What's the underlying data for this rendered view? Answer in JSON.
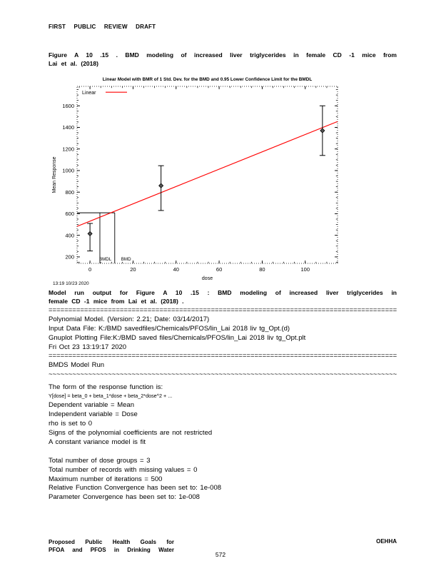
{
  "doc": {
    "header": "FIRST PUBLIC REVIEW DRAFT",
    "caption": {
      "line1": "Figure A 10 .15 . BMD modeling of increased liver triglycerides in female CD -1 mice from",
      "line2": "Lai et al. (2018)"
    },
    "model_para": {
      "line1": "Model run output for Figure A 10 .15 : BMD modeling of increased liver triglycerides in",
      "line2": "female CD -1 mice from Lai et al. (2018) ."
    },
    "sep_eq": "====================================================================================================",
    "sep_tilde": "~~~~~~~~~~~~~~~~~~~~~~~~~~~~~~~~~~~~~~~~~~~~~~~~~~~~~~~~~~~~~~~~~~~~~~~~~~~~~~~~~~~~~~~~~~~~~~~~~~~~",
    "info_lines": [
      "Polynomial Model. (Version: 2.21; Date: 03/14/2017)",
      "Input Data File: K:/BMD savedfiles/Chemicals/PFOS/lin_Lai 2018 liv tg_Opt.(d)",
      "Gnuplot Plotting File:K:/BMD saved files/Chemicals/PFOS/lin_Lai 2018 liv tg_Opt.plt",
      "Fri Oct 23 13:19:17 2020"
    ],
    "bmds_run_label": "BMDS Model Run",
    "form_lines": [
      "The form of the response function is:",
      "Y[dose] = beta_0 + beta_1*dose + beta_2*dose^2 + ...",
      "Dependent variable = Mean",
      "Independent variable = Dose",
      "rho is set to 0",
      "Signs of the polynomial coefficients are not restricted",
      "A constant variance model is fit"
    ],
    "iter_lines": [
      "Total number of dose groups = 3",
      "Total number of records with missing values = 0",
      "Maximum number of iterations = 500",
      "Relative Function Convergence has been set to: 1e-008",
      "Parameter Convergence has been set to: 1e-008"
    ],
    "footer": {
      "left1": "Proposed Public Health Goals for",
      "left2": "PFOA and PFOS in Drinking Water",
      "right": "OEHHA"
    },
    "page_number": "572"
  },
  "chart_data": {
    "type": "scatter",
    "title": "Linear Model with BMR of 1 Std. Dev. for the BMD and 0.95 Lower Confidence Limit for the BMDL",
    "xlabel": "dose",
    "ylabel": "Mean Response",
    "timestamp": "13:19 10/23 2020",
    "legend": {
      "label": "Linear",
      "color": "#ff0000"
    },
    "xlim": [
      -6,
      115
    ],
    "ylim": [
      140,
      1780
    ],
    "x_ticks": [
      0,
      20,
      40,
      60,
      80,
      100
    ],
    "y_ticks": [
      200,
      400,
      600,
      800,
      1000,
      1200,
      1400,
      1600
    ],
    "points": [
      {
        "dose": 0,
        "mean": 415,
        "lower": 255,
        "upper": 510
      },
      {
        "dose": 33,
        "mean": 860,
        "lower": 630,
        "upper": 1045
      },
      {
        "dose": 108,
        "mean": 1370,
        "lower": 1140,
        "upper": 1600
      }
    ],
    "fit_line": {
      "name": "Linear",
      "intercept": 531,
      "slope": 8.03,
      "color": "#ff0000"
    },
    "bmr_response": 609,
    "bmd": 11.5,
    "bmdl": 4.6,
    "bmd_label": "BMD",
    "bmdl_label": "BMDL",
    "grid": false,
    "legend_position": "top-left"
  }
}
